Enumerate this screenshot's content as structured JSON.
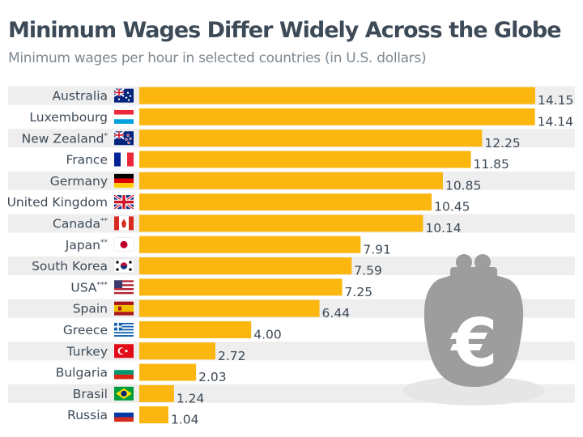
{
  "title": "Minimum Wages Differ Widely Across the Globe",
  "subtitle": "Minimum wages per hour in selected countries (in U.S. dollars)",
  "colors": {
    "bar": "#fbb710",
    "stripe": "#eeeeee",
    "text": "#3d4a57",
    "purse": "#9d9d9d"
  },
  "decoration": {
    "icon": "euro-purse-icon"
  },
  "chart_data": {
    "type": "bar",
    "orientation": "horizontal",
    "categories": [
      "Australia",
      "Luxembourg",
      "New Zealand",
      "France",
      "Germany",
      "United Kingdom",
      "Canada",
      "Japan",
      "South Korea",
      "USA",
      "Spain",
      "Greece",
      "Turkey",
      "Bulgaria",
      "Brasil",
      "Russia"
    ],
    "markers": [
      "",
      "",
      "*",
      "",
      "",
      "",
      "**",
      "**",
      "",
      "***",
      "",
      "",
      "",
      "",
      "",
      ""
    ],
    "flags": [
      "australia",
      "luxembourg",
      "new-zealand",
      "france",
      "germany",
      "united-kingdom",
      "canada",
      "japan",
      "south-korea",
      "usa",
      "spain",
      "greece",
      "turkey",
      "bulgaria",
      "brasil",
      "russia"
    ],
    "values": [
      14.15,
      14.14,
      12.25,
      11.85,
      10.85,
      10.45,
      10.14,
      7.91,
      7.59,
      7.25,
      6.44,
      4.0,
      2.72,
      2.03,
      1.24,
      1.04
    ],
    "labels": [
      "14.15",
      "14.14",
      "12.25",
      "11.85",
      "10.85",
      "10.45",
      "10.14",
      "7.91",
      "7.59",
      "7.25",
      "6.44",
      "4.00",
      "2.72",
      "2.03",
      "1.24",
      "1.04"
    ],
    "xlim": [
      0,
      14.15
    ]
  }
}
